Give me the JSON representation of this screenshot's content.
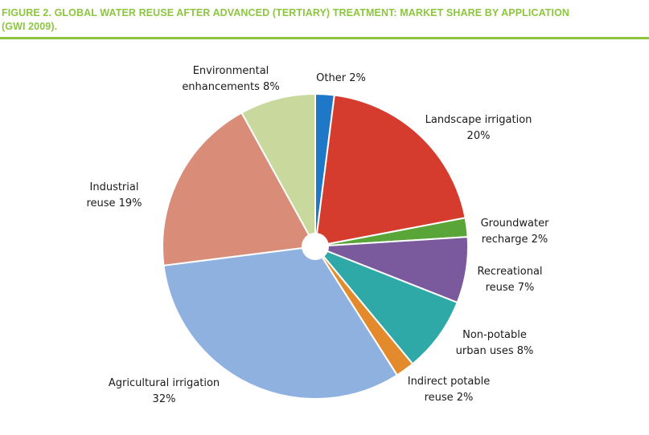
{
  "figure": {
    "title_line1": "FIGURE 2. GLOBAL WATER REUSE AFTER ADVANCED (TERTIARY) TREATMENT: MARKET SHARE BY APPLICATION",
    "title_line2": "(GWI 2009).",
    "accent_color": "#8cc63f"
  },
  "chart_data": {
    "type": "pie",
    "title": "FIGURE 2. GLOBAL WATER REUSE AFTER ADVANCED (TERTIARY) TREATMENT: MARKET SHARE BY APPLICATION (GWI 2009).",
    "start_at": "top",
    "direction": "clockwise",
    "slices": [
      {
        "label": "Other",
        "value": 2,
        "label_text": "Other 2%",
        "color": "#1f77c7"
      },
      {
        "label": "Landscape irrigation",
        "value": 20,
        "label_text": "Landscape irrigation\n20%",
        "color": "#d63c2e"
      },
      {
        "label": "Groundwater recharge",
        "value": 2,
        "label_text": "Groundwater\nrecharge 2%",
        "color": "#5aa538"
      },
      {
        "label": "Recreational reuse",
        "value": 7,
        "label_text": "Recreational\nreuse 7%",
        "color": "#7a5a9c"
      },
      {
        "label": "Non-potable urban uses",
        "value": 8,
        "label_text": "Non-potable\nurban uses 8%",
        "color": "#2fa8a8"
      },
      {
        "label": "Indirect potable reuse",
        "value": 2,
        "label_text": "Indirect potable\nreuse 2%",
        "color": "#e38a2c"
      },
      {
        "label": "Agricultural irrigation",
        "value": 32,
        "label_text": "Agricultural irrigation\n32%",
        "color": "#8eb1e0"
      },
      {
        "label": "Industrial reuse",
        "value": 19,
        "label_text": "Industrial\nreuse 19%",
        "color": "#d98c78"
      },
      {
        "label": "Environmental enhancements",
        "value": 8,
        "label_text": "Environmental\nenhancements 8%",
        "color": "#c9d89c"
      }
    ]
  }
}
